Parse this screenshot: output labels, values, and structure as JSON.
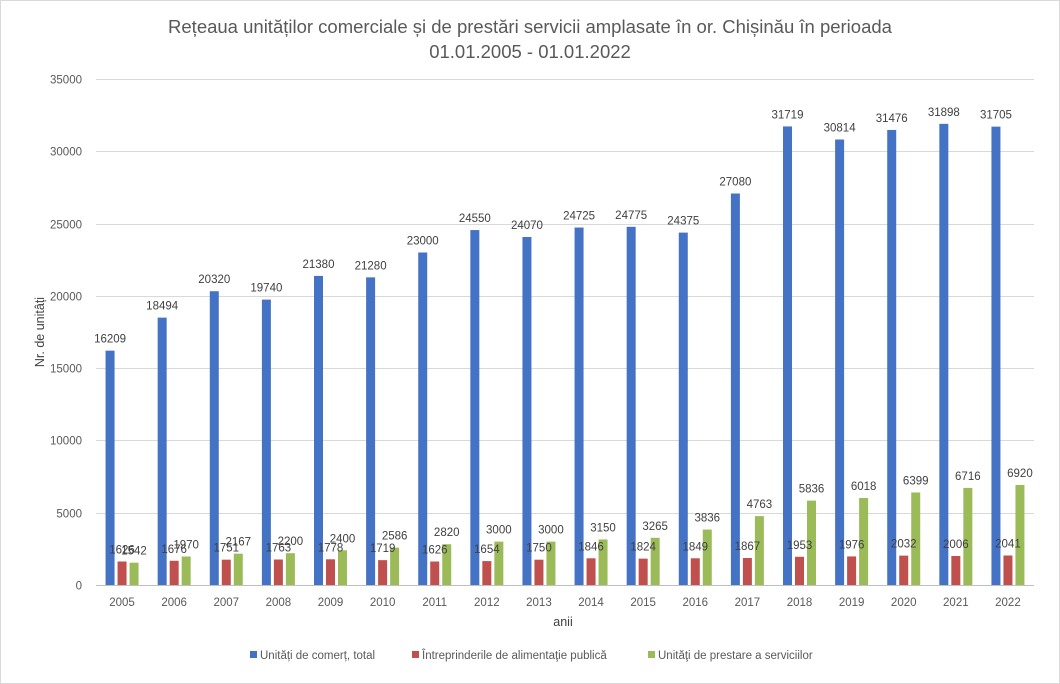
{
  "chart_data": {
    "type": "bar",
    "title_line1": "Rețeaua unităților comerciale și de prestări servicii amplasate în or. Chișinău în perioada",
    "title_line2": "01.01.2005 - 01.01.2022",
    "xlabel": "anii",
    "ylabel": "Nr. de unitâți",
    "ylim": [
      0,
      35000
    ],
    "yticks": [
      0,
      5000,
      10000,
      15000,
      20000,
      25000,
      30000,
      35000
    ],
    "categories": [
      "2005",
      "2006",
      "2007",
      "2008",
      "2009",
      "2010",
      "2011",
      "2012",
      "2013",
      "2014",
      "2015",
      "2016",
      "2017",
      "2018",
      "2019",
      "2020",
      "2021",
      "2022"
    ],
    "series": [
      {
        "name": "Unități de comerț, total",
        "color": "#4472c4",
        "values": [
          16209,
          18494,
          20320,
          19740,
          21380,
          21280,
          23000,
          24550,
          24070,
          24725,
          24775,
          24375,
          27080,
          31719,
          30814,
          31476,
          31898,
          31705
        ]
      },
      {
        "name": "Întreprinderile de alimentaţie publică",
        "color": "#c0504d",
        "values": [
          1626,
          1676,
          1751,
          1763,
          1778,
          1719,
          1626,
          1654,
          1750,
          1846,
          1824,
          1849,
          1867,
          1953,
          1976,
          2032,
          2006,
          2041
        ]
      },
      {
        "name": "Unităţi de prestare a serviciilor",
        "color": "#9bbb59",
        "values": [
          1542,
          1970,
          2167,
          2200,
          2400,
          2586,
          2820,
          3000,
          3000,
          3150,
          3265,
          3836,
          4763,
          5836,
          6018,
          6399,
          6716,
          6920
        ]
      }
    ],
    "grid": true,
    "legend_position": "bottom"
  }
}
